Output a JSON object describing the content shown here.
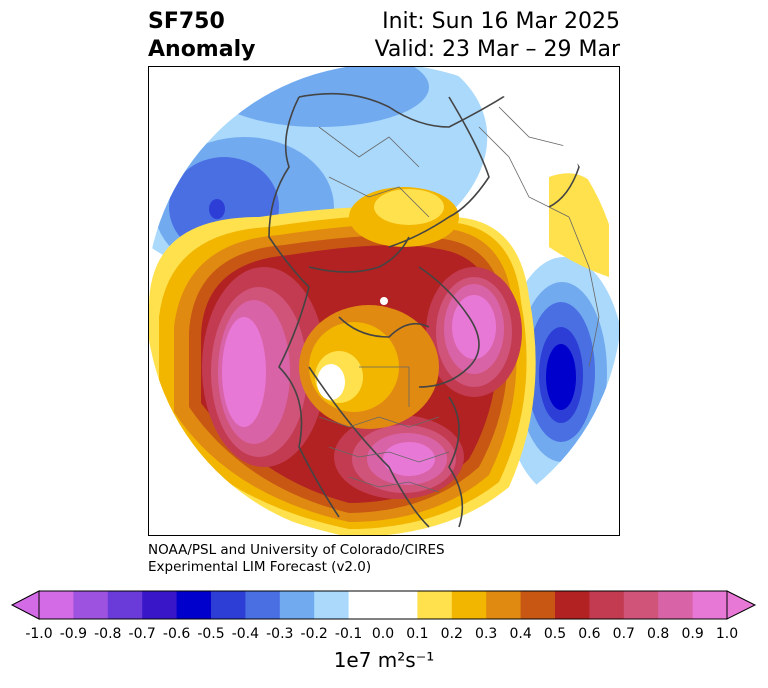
{
  "title": {
    "line1": "SF750",
    "line2": "Anomaly",
    "init": "Init: Sun 16 Mar 2025",
    "valid": "Valid: 23 Mar – 29 Mar"
  },
  "credit": {
    "line1": "NOAA/PSL and University of Colorado/CIRES",
    "line2": "Experimental LIM Forecast (v2.0)"
  },
  "colorbar": {
    "units_text": "1e7 m²s⁻¹",
    "tick_labels": [
      "-1.0",
      "-0.9",
      "-0.8",
      "-0.7",
      "-0.6",
      "-0.5",
      "-0.4",
      "-0.3",
      "-0.2",
      "-0.1",
      "0.0",
      "0.1",
      "0.2",
      "0.3",
      "0.4",
      "0.5",
      "0.6",
      "0.7",
      "0.8",
      "0.9",
      "1.0"
    ],
    "colors": [
      "#d36be6",
      "#9d52e0",
      "#6a3bd8",
      "#3a16c9",
      "#0000cc",
      "#2c3ed6",
      "#4a6fe3",
      "#72aaf0",
      "#aad9fb",
      "#ffffff",
      "#ffffff",
      "#ffe14d",
      "#f2b500",
      "#e08a12",
      "#c75713",
      "#b22222",
      "#c23b50",
      "#d0537a",
      "#d963a7",
      "#e878d6"
    ],
    "extend_min_color": "#d36be6",
    "extend_max_color": "#e878d6"
  },
  "map": {
    "projection": "north polar stereographic",
    "features": [
      "coastlines",
      "country borders",
      "state borders"
    ]
  }
}
